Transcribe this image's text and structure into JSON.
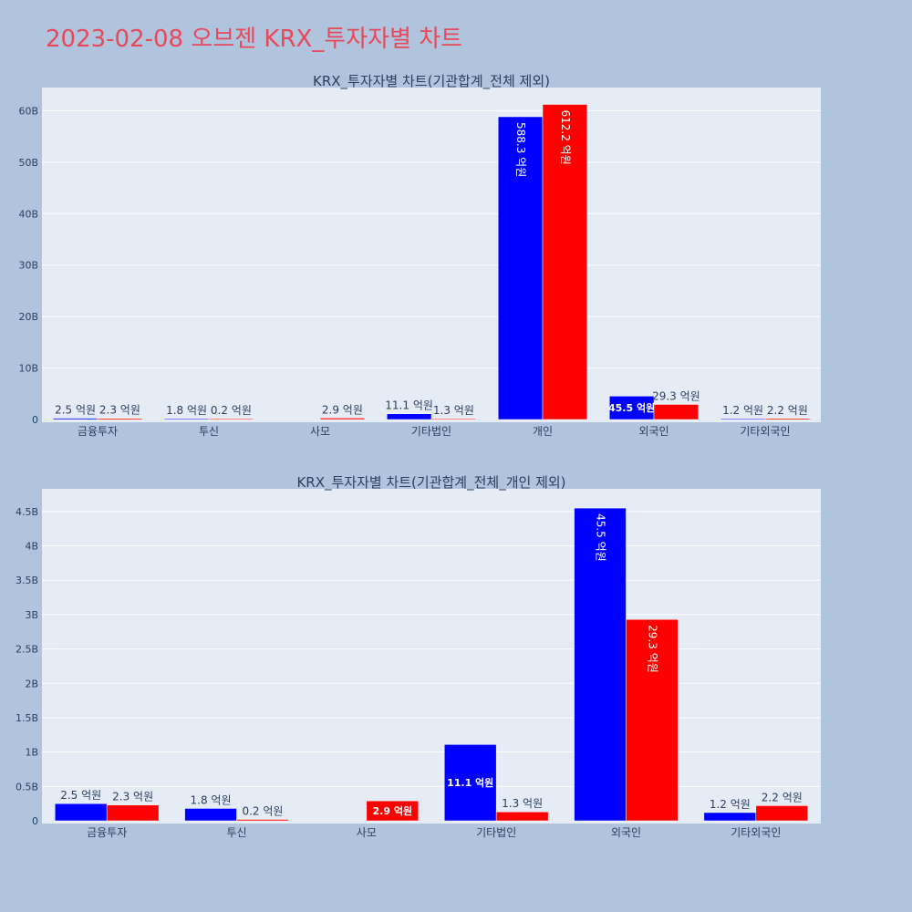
{
  "page": {
    "title": "2023-02-08 오브젠 KRX_투자자별 차트"
  },
  "colors": {
    "background": "#b0c4de",
    "plot_bg": "#e5ecf6",
    "title": "#e8495a",
    "series_buy": "#0000ff",
    "series_sell": "#ff0000",
    "text": "#2a3f5f"
  },
  "chart_data": [
    {
      "type": "bar",
      "title": "KRX_투자자별 차트(기관합계_전체 제외)",
      "categories": [
        "금융투자",
        "투신",
        "사모",
        "기타법인",
        "개인",
        "외국인",
        "기타외국인"
      ],
      "series": [
        {
          "color": "#0000ff",
          "values": [
            250000000,
            180000000,
            0,
            1110000000,
            58830000000,
            4550000000,
            120000000
          ],
          "labels": [
            "2.5 억원",
            "1.8 억원",
            "",
            "11.1 억원",
            "588.3 억원",
            "45.5 억원",
            "1.2 억원"
          ]
        },
        {
          "color": "#ff0000",
          "values": [
            230000000,
            20000000,
            290000000,
            130000000,
            61220000000,
            2930000000,
            220000000
          ],
          "labels": [
            "2.3 억원",
            "0.2 억원",
            "2.9 억원",
            "1.3 억원",
            "612.2 억원",
            "29.3 억원",
            "2.2 억원"
          ]
        }
      ],
      "ylim": [
        0,
        64500000000
      ],
      "yticks": [
        0,
        10000000000,
        20000000000,
        30000000000,
        40000000000,
        50000000000,
        60000000000
      ],
      "ytick_labels": [
        "0",
        "10B",
        "20B",
        "30B",
        "40B",
        "50B",
        "60B"
      ],
      "grid": true,
      "legend": "none"
    },
    {
      "type": "bar",
      "title": "KRX_투자자별 차트(기관합계_전체_개인 제외)",
      "categories": [
        "금융투자",
        "투신",
        "사모",
        "기타법인",
        "외국인",
        "기타외국인"
      ],
      "series": [
        {
          "color": "#0000ff",
          "values": [
            250000000,
            180000000,
            0,
            1110000000,
            4550000000,
            120000000
          ],
          "labels": [
            "2.5 억원",
            "1.8 억원",
            "",
            "11.1 억원",
            "45.5 억원",
            "1.2 억원"
          ]
        },
        {
          "color": "#ff0000",
          "values": [
            230000000,
            20000000,
            290000000,
            130000000,
            2930000000,
            220000000
          ],
          "labels": [
            "2.3 억원",
            "0.2 억원",
            "2.9 억원",
            "1.3 억원",
            "29.3 억원",
            "2.2 억원"
          ]
        }
      ],
      "ylim": [
        0,
        4830000000
      ],
      "yticks": [
        0,
        500000000,
        1000000000,
        1500000000,
        2000000000,
        2500000000,
        3000000000,
        3500000000,
        4000000000,
        4500000000
      ],
      "ytick_labels": [
        "0",
        "0.5B",
        "1B",
        "1.5B",
        "2B",
        "2.5B",
        "3B",
        "3.5B",
        "4B",
        "4.5B"
      ],
      "grid": true,
      "legend": "none"
    }
  ]
}
